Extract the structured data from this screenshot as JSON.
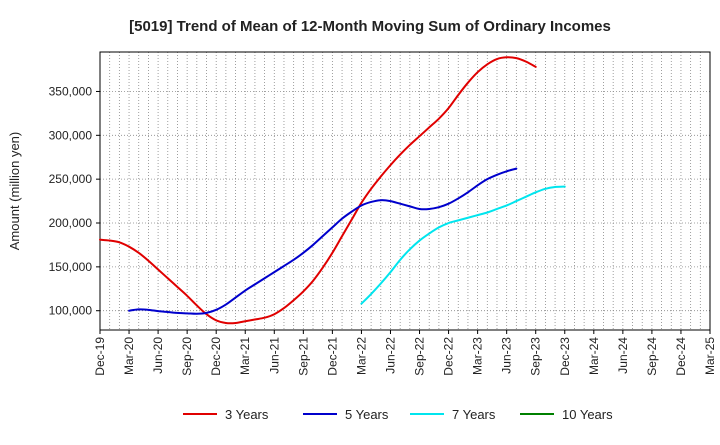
{
  "chart_data": {
    "type": "line",
    "title": "[5019]  Trend of Mean of 12-Month Moving Sum of Ordinary Incomes",
    "xlabel": "",
    "ylabel": "Amount (million yen)",
    "ylim": [
      78000,
      395000
    ],
    "yticks": [
      100000,
      150000,
      200000,
      250000,
      300000,
      350000
    ],
    "ytick_labels": [
      "100,000",
      "150,000",
      "200,000",
      "250,000",
      "300,000",
      "350,000"
    ],
    "xtick_labels": [
      "Dec-19",
      "Mar-20",
      "Jun-20",
      "Sep-20",
      "Dec-20",
      "Mar-21",
      "Jun-21",
      "Sep-21",
      "Dec-21",
      "Mar-22",
      "Jun-22",
      "Sep-22",
      "Dec-22",
      "Mar-23",
      "Jun-23",
      "Sep-23",
      "Dec-23",
      "Mar-24",
      "Jun-24",
      "Sep-24",
      "Dec-24",
      "Mar-25"
    ],
    "grid": true,
    "legend_position": "bottom",
    "series": [
      {
        "name": "3 Years",
        "color": "#e00000",
        "start_index": 0,
        "values": [
          181000,
          180000,
          178000,
          173000,
          166000,
          157000,
          147000,
          137000,
          127000,
          117000,
          106000,
          96000,
          89000,
          86000,
          86000,
          88000,
          90000,
          92000,
          96000,
          103000,
          112000,
          122000,
          134000,
          149000,
          166000,
          185000,
          204000,
          223000,
          239000,
          253000,
          266000,
          278000,
          289000,
          299000,
          309000,
          319000,
          331000,
          346000,
          360000,
          372000,
          381000,
          387000,
          389000,
          388000,
          384000,
          378000
        ]
      },
      {
        "name": "5 Years",
        "color": "#0000cc",
        "start_index": 3,
        "values": [
          100000,
          101500,
          101000,
          99500,
          98500,
          97500,
          97000,
          96500,
          97500,
          101000,
          107000,
          115000,
          123000,
          130000,
          137000,
          144000,
          151000,
          158000,
          166000,
          175000,
          185000,
          195000,
          205000,
          213000,
          220000,
          224000,
          226000,
          225000,
          222000,
          219000,
          216000,
          216000,
          218000,
          222000,
          228000,
          235000,
          243000,
          250000,
          255000,
          259000,
          262000
        ]
      },
      {
        "name": "7 Years",
        "color": "#00e5ee",
        "start_index": 27,
        "values": [
          108000,
          119000,
          131000,
          144000,
          158000,
          170000,
          180000,
          188000,
          195000,
          200000,
          203000,
          206000,
          209000,
          212000,
          216000,
          220000,
          225000,
          230000,
          235000,
          239000,
          241000,
          241500
        ]
      },
      {
        "name": "10 Years",
        "color": "#008000",
        "start_index": 0,
        "values": []
      }
    ]
  }
}
